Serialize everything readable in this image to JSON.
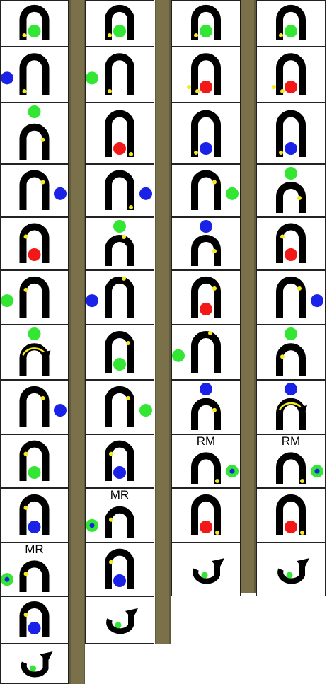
{
  "colors": {
    "arch": "#000000",
    "green": "#33e633",
    "red": "#f21818",
    "blue": "#1a22e8",
    "yellow": "#f7ea1e",
    "divider": "#7a704a",
    "background": "#ffffff"
  },
  "columns": [
    {
      "name": "column-1",
      "cells": [
        {
          "arch": "U",
          "ball": "green",
          "ballPos": "inside",
          "dot": "left-bottom"
        },
        {
          "arch": "U",
          "ball": "blue",
          "ballPos": "left",
          "dot": "left-bottom"
        },
        {
          "arch": "U",
          "ball": "green",
          "ballPos": "top",
          "dot": "right-mid"
        },
        {
          "arch": "U",
          "ball": "blue",
          "ballPos": "right",
          "dot": "right-upper"
        },
        {
          "arch": "U",
          "ball": "red",
          "ballPos": "inside",
          "dot": "left-upper"
        },
        {
          "arch": "U",
          "ball": "green",
          "ballPos": "left",
          "dot": "left-upper"
        },
        {
          "arch": "U",
          "ball": "green",
          "ballPos": "top",
          "arrow": true
        },
        {
          "arch": "U",
          "ball": "blue",
          "ballPos": "right",
          "dot": "right-upper"
        },
        {
          "arch": "U",
          "ball": "green",
          "ballPos": "inside",
          "dot": "left-upper"
        },
        {
          "arch": "U",
          "ball": "blue",
          "ballPos": "inside",
          "dot": "left-upper"
        },
        {
          "arch": "U",
          "ball": "green",
          "ballPos": "left",
          "ringed": true,
          "dot": "left-upper",
          "label": "MR"
        },
        {
          "arch": "U",
          "ball": "blue",
          "ballPos": "inside",
          "dot": "left-upper"
        },
        {
          "arch": "hook",
          "ball": "green"
        }
      ]
    },
    {
      "name": "column-2",
      "cells": [
        {
          "arch": "U",
          "ball": "green",
          "ballPos": "inside",
          "dot": "left-bottom"
        },
        {
          "arch": "U",
          "ball": "green",
          "ballPos": "left",
          "dot": "left-bottom"
        },
        {
          "arch": "U",
          "ball": "red",
          "ballPos": "inside",
          "dot": "right-bottom"
        },
        {
          "arch": "U",
          "ball": "blue",
          "ballPos": "right",
          "dot": "right-bottom"
        },
        {
          "arch": "U",
          "ball": "green",
          "ballPos": "top",
          "dot": "top-right"
        },
        {
          "arch": "U",
          "ball": "blue",
          "ballPos": "left",
          "dot": "top-right"
        },
        {
          "arch": "U",
          "ball": "green",
          "ballPos": "inside",
          "dot": "right-upper"
        },
        {
          "arch": "U",
          "ball": "green",
          "ballPos": "right",
          "dot": "right-upper"
        },
        {
          "arch": "U",
          "ball": "blue",
          "ballPos": "inside",
          "dot": "left-upper"
        },
        {
          "arch": "U",
          "ball": "green",
          "ballPos": "left",
          "ringed": true,
          "dot": "left-upper",
          "label": "MR"
        },
        {
          "arch": "U",
          "ball": "blue",
          "ballPos": "inside",
          "dot": "left-upper"
        },
        {
          "arch": "hook",
          "ball": "green"
        }
      ]
    },
    {
      "name": "column-3",
      "cells": [
        {
          "arch": "U",
          "ball": "green",
          "ballPos": "inside",
          "dot": "left-bottom"
        },
        {
          "arch": "U",
          "ball": "red",
          "ballPos": "inside",
          "dot": "left-bottom2"
        },
        {
          "arch": "U",
          "ball": "blue",
          "ballPos": "inside",
          "dot": "left-bottom"
        },
        {
          "arch": "U",
          "ball": "green",
          "ballPos": "right",
          "dot": "right-upper"
        },
        {
          "arch": "U",
          "ball": "blue",
          "ballPos": "top",
          "dot": "right-mid"
        },
        {
          "arch": "U",
          "ball": "red",
          "ballPos": "inside",
          "dot": "right-upper"
        },
        {
          "arch": "U",
          "ball": "green",
          "ballPos": "left",
          "dot": "top-right"
        },
        {
          "arch": "U",
          "ball": "blue",
          "ballPos": "top",
          "dot": "right-upper"
        },
        {
          "arch": "U",
          "ball": "green",
          "ballPos": "right",
          "ringed": true,
          "dot": "right-bottom",
          "label": "RM"
        },
        {
          "arch": "U",
          "ball": "red",
          "ballPos": "inside",
          "dot": "right-bottom"
        },
        {
          "arch": "hook",
          "ball": "green"
        }
      ]
    },
    {
      "name": "column-4",
      "cells": [
        {
          "arch": "U",
          "ball": "green",
          "ballPos": "inside",
          "dot": "left-bottom"
        },
        {
          "arch": "U",
          "ball": "red",
          "ballPos": "inside",
          "dot": "left-bottom2"
        },
        {
          "arch": "U",
          "ball": "blue",
          "ballPos": "inside",
          "dot": "left-bottom"
        },
        {
          "arch": "U",
          "ball": "green",
          "ballPos": "top",
          "dot": "right-mid"
        },
        {
          "arch": "U",
          "ball": "red",
          "ballPos": "inside",
          "dot": "left-upper"
        },
        {
          "arch": "U",
          "ball": "blue",
          "ballPos": "right",
          "dot": "right-upper"
        },
        {
          "arch": "U",
          "ball": "green",
          "ballPos": "top",
          "dot": "left-upper"
        },
        {
          "arch": "U",
          "ball": "blue",
          "ballPos": "top",
          "arrow": true
        },
        {
          "arch": "U",
          "ball": "green",
          "ballPos": "right",
          "ringed": true,
          "dot": "right-bottom",
          "label": "RM"
        },
        {
          "arch": "U",
          "ball": "red",
          "ballPos": "inside",
          "dot": "right-bottom"
        },
        {
          "arch": "hook",
          "ball": "green"
        }
      ]
    }
  ]
}
